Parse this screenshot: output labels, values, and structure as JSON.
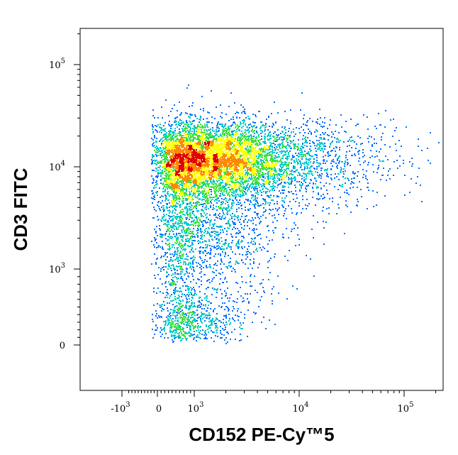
{
  "chart_data": {
    "type": "scatter",
    "style": "flow cytometry density dot plot (pseudocolor)",
    "xlabel": "CD152 PE-Cy™5",
    "ylabel": "CD3 FITC",
    "x_scale": "biexponential",
    "y_scale": "biexponential",
    "x_ticks": [
      {
        "value": -1000,
        "label": "-10",
        "exp": "3"
      },
      {
        "value": 0,
        "label": "0",
        "exp": ""
      },
      {
        "value": 1000,
        "label": "10",
        "exp": "3"
      },
      {
        "value": 10000,
        "label": "10",
        "exp": "4"
      },
      {
        "value": 100000,
        "label": "10",
        "exp": "5"
      }
    ],
    "y_ticks": [
      {
        "value": 0,
        "label": "0",
        "exp": ""
      },
      {
        "value": 1000,
        "label": "10",
        "exp": "3"
      },
      {
        "value": 10000,
        "label": "10",
        "exp": "4"
      },
      {
        "value": 100000,
        "label": "10",
        "exp": "5"
      }
    ],
    "populations": [
      {
        "x_center": 1500,
        "y_center": 12000,
        "x_sd_log": 0.35,
        "y_sd_log": 0.17,
        "weight": 0.42,
        "density": "highest"
      },
      {
        "x_center": 3000,
        "y_center": 11000,
        "x_sd_log": 0.5,
        "y_sd_log": 0.22,
        "weight": 0.24,
        "density": "high"
      },
      {
        "x_center": 1200,
        "y_center": 2500,
        "x_sd_log": 0.4,
        "y_sd_log": 0.35,
        "weight": 0.2,
        "density": "low"
      },
      {
        "x_center": 800,
        "y_center": 350,
        "x_sd_log": 0.3,
        "y_sd_log": 0.3,
        "weight": 0.08,
        "density": "low"
      },
      {
        "x_center": 15000,
        "y_center": 12000,
        "x_sd_log": 0.45,
        "y_sd_log": 0.2,
        "weight": 0.06,
        "density": "sparse"
      }
    ],
    "colormap": [
      "#0000cc",
      "#0070ff",
      "#00c8c8",
      "#40e040",
      "#ffff00",
      "#ff8800",
      "#e00000"
    ]
  }
}
